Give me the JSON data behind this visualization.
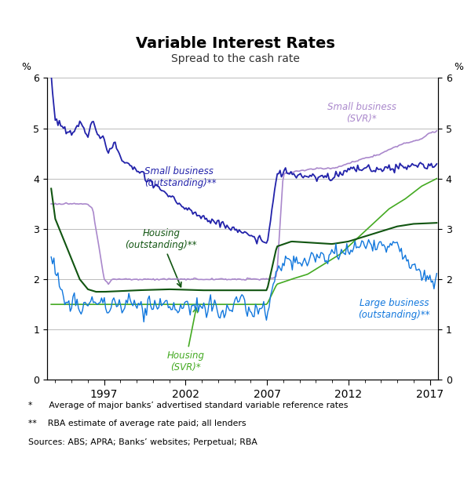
{
  "title": "Variable Interest Rates",
  "subtitle": "Spread to the cash rate",
  "ylabel_left": "%",
  "ylabel_right": "%",
  "ylim": [
    0,
    6
  ],
  "yticks": [
    0,
    1,
    2,
    3,
    4,
    5,
    6
  ],
  "xlim_year": [
    1993.5,
    2017.5
  ],
  "xticks_years": [
    1997,
    2002,
    2007,
    2012,
    2017
  ],
  "background_color": "#ffffff",
  "grid_color": "#bbbbbb",
  "series_colors": {
    "small_business_outstanding": "#2222aa",
    "small_business_svr": "#aa88cc",
    "housing_outstanding": "#115511",
    "housing_svr": "#44aa22",
    "large_business_outstanding": "#1177dd"
  },
  "footnotes": [
    "*      Average of major banks’ advertised standard variable reference rates",
    "**    RBA estimate of average rate paid; all lenders",
    "Sources: ABS; APRA; Banks’ websites; Perpetual; RBA"
  ]
}
